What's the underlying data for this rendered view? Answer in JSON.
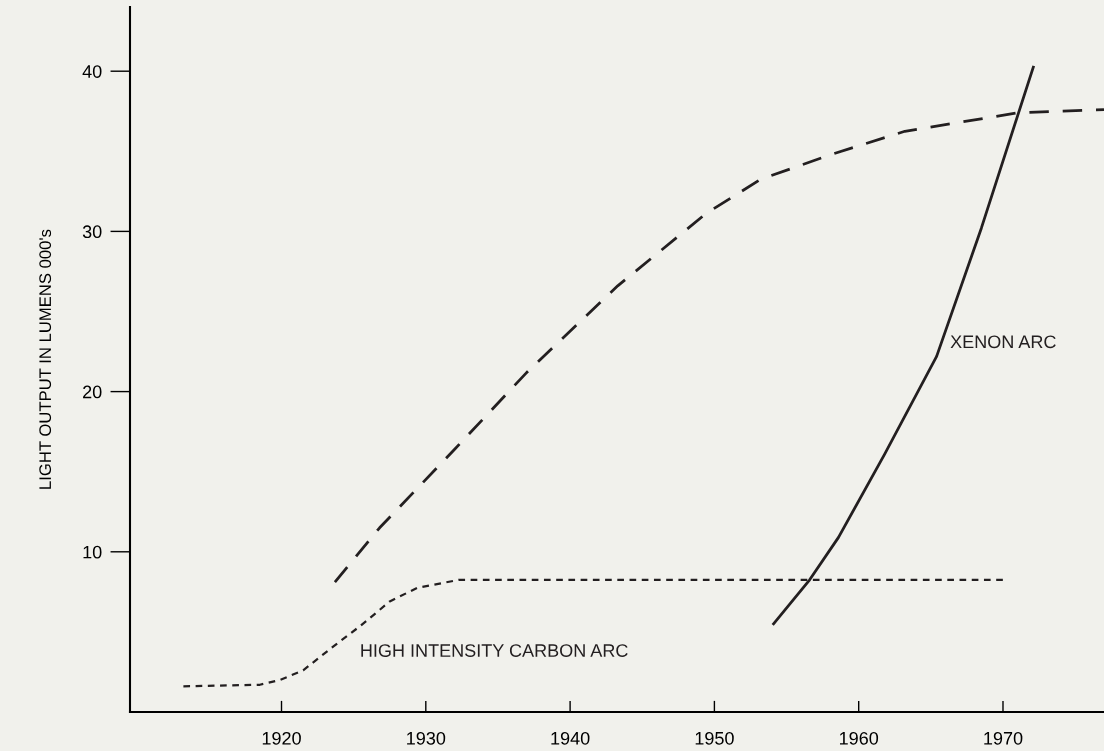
{
  "chart_data": {
    "type": "line",
    "ylabel": "LIGHT OUTPUT IN LUMENS 000's",
    "xlim": [
      1909.5,
      1977
    ],
    "xticks": [
      1920,
      1930,
      1940,
      1950,
      1960,
      1970
    ],
    "ylim": [
      0,
      44
    ],
    "yticks": [
      10,
      20,
      30,
      40
    ],
    "grid": false,
    "legend": false,
    "marker": "none",
    "series": [
      {
        "color": "#231f20",
        "line_style": "dotted",
        "x": [
          1913.2,
          1918.5,
          1919.9,
          1921.5,
          1923.6,
          1925.5,
          1927.5,
          1929.4,
          1932.3,
          1970
        ],
        "values": [
          1.6,
          1.7,
          2.0,
          2.6,
          4.1,
          5.4,
          6.9,
          7.75,
          8.25,
          8.25
        ]
      },
      {
        "color": "#231f20",
        "line_style": "dashed",
        "x": [
          1923.7,
          1926.8,
          1932.0,
          1937.0,
          1943.3,
          1949.4,
          1953.2,
          1958.1,
          1963.2,
          1971.0,
          1977
        ],
        "values": [
          8.1,
          11.5,
          16.4,
          21.2,
          26.6,
          31.1,
          33.25,
          34.8,
          36.25,
          37.4,
          37.6
        ]
      },
      {
        "color": "#231f20",
        "line_style": "solid",
        "x": [
          1954.1,
          1956.6,
          1958.6,
          1961.8,
          1965.4,
          1968.5,
          1972.1
        ],
        "values": [
          5.5,
          8.25,
          10.9,
          16.1,
          22.2,
          30.2,
          40.25
        ]
      }
    ],
    "annotations": [
      "XENON ARC",
      "HIGH INTENSITY CARBON ARC"
    ]
  }
}
